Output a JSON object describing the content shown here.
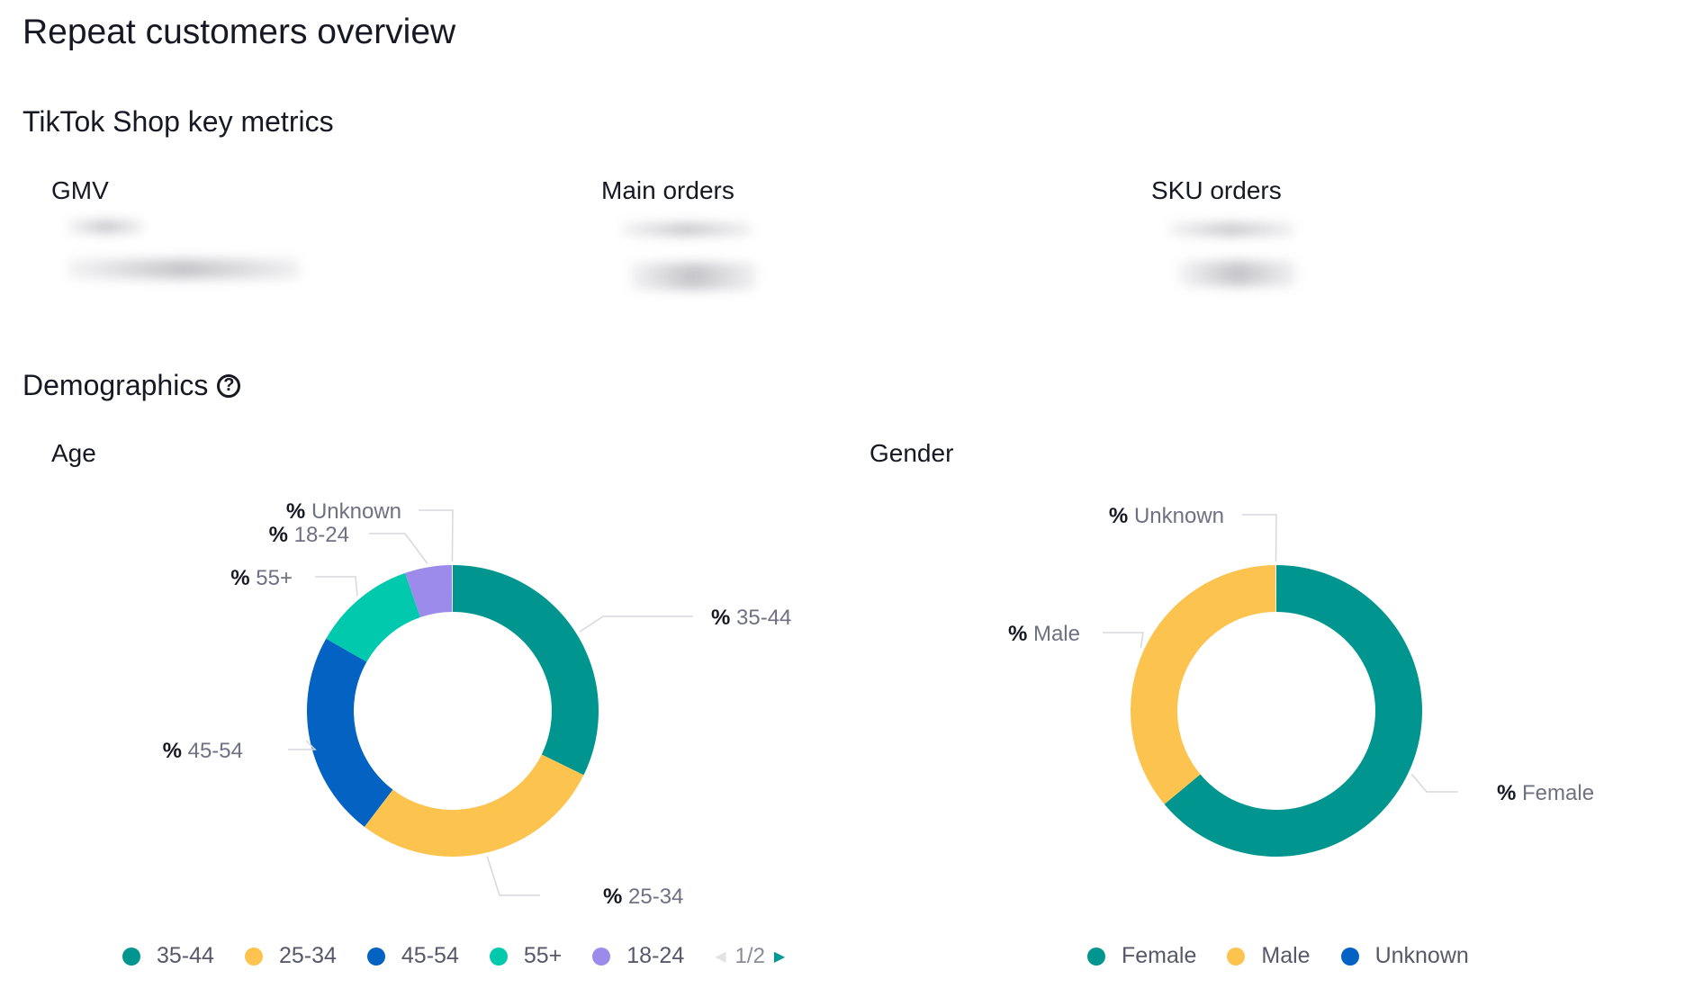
{
  "header": {
    "title": "Repeat customers overview"
  },
  "key_metrics": {
    "title": "TikTok Shop key metrics",
    "metrics": [
      {
        "label": "GMV"
      },
      {
        "label": "Main orders"
      },
      {
        "label": "SKU orders"
      }
    ]
  },
  "demographics": {
    "title": "Demographics",
    "help_icon": "question-circle-icon"
  },
  "colors": {
    "teal": "#00968F",
    "yellow": "#FDC34F",
    "blue": "#0362C2",
    "cyan": "#00C9AE",
    "purple": "#9D8BEB",
    "leader": "#D7D8DD",
    "label_gray": "#6F7183"
  },
  "chart_data": [
    {
      "type": "pie",
      "title": "Age",
      "donut": true,
      "categories": [
        "35-44",
        "25-34",
        "45-54",
        "55+",
        "18-24",
        "Unknown"
      ],
      "values": [
        31,
        27,
        22,
        11,
        5,
        0.1
      ],
      "colors": [
        "#00968F",
        "#FDC34F",
        "#0362C2",
        "#00C9AE",
        "#9D8BEB",
        "#B8B8C0"
      ],
      "labels": [
        "% 35-44",
        "% 25-34",
        "% 45-54",
        "% 55+",
        "% 18-24",
        "% Unknown"
      ],
      "legend": {
        "items": [
          "35-44",
          "25-34",
          "45-54",
          "55+",
          "18-24"
        ],
        "page": "1/2",
        "position": "bottom"
      }
    },
    {
      "type": "pie",
      "title": "Gender",
      "donut": true,
      "categories": [
        "Female",
        "Male",
        "Unknown"
      ],
      "values": [
        64,
        36,
        0.1
      ],
      "colors": [
        "#00968F",
        "#FDC34F",
        "#0362C2"
      ],
      "labels": [
        "% Female",
        "% Male",
        "% Unknown"
      ],
      "legend": {
        "items": [
          "Female",
          "Male",
          "Unknown"
        ],
        "position": "bottom"
      }
    }
  ]
}
